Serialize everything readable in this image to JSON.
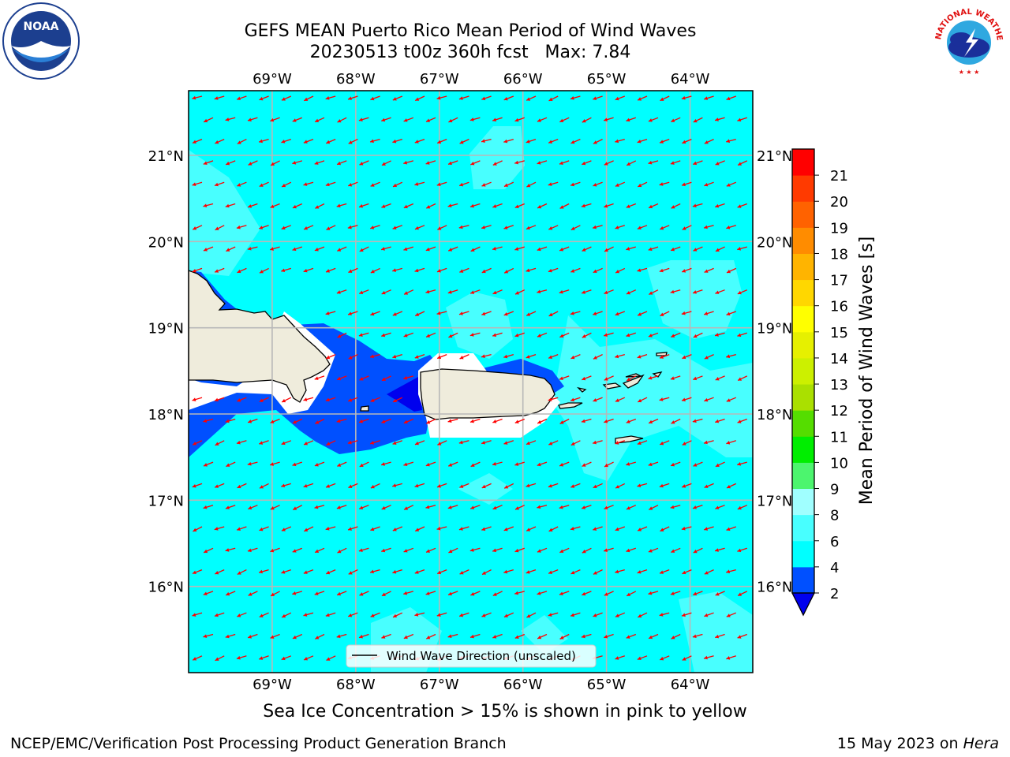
{
  "header": {
    "title_line1": "GEFS MEAN Puerto Rico Mean Period of Wind Waves",
    "title_line2": "20230513 t00z 360h fcst   Max: 7.84"
  },
  "logos": {
    "left": {
      "icon": "noaa-logo-icon",
      "text": "NOAA"
    },
    "right": {
      "icon": "nws-logo-icon",
      "text": "NATIONAL WEATHER SERVICE"
    }
  },
  "map": {
    "lon_labels": [
      "69°W",
      "68°W",
      "67°W",
      "66°W",
      "65°W",
      "64°W"
    ],
    "lat_labels": [
      "21°N",
      "20°N",
      "19°N",
      "18°N",
      "17°N",
      "16°N"
    ],
    "lon_values": [
      -69,
      -68,
      -67,
      -66,
      -65,
      -64
    ],
    "lat_values": [
      21,
      20,
      19,
      18,
      17,
      16
    ],
    "extent": {
      "lon_min": -70.0,
      "lon_max": -63.25,
      "lat_min": 15.0,
      "lat_max": 21.75
    },
    "ocean_color": "#00ffff",
    "land_color": "#efecdc",
    "arrow_color": "#ff0000",
    "grid_color": "#b8b8b8",
    "legend_label": "Wind Wave Direction (unscaled)"
  },
  "colorbar": {
    "label": "Mean Period of Wind Waves [s]",
    "ticks": [
      "2",
      "4",
      "6",
      "8",
      "9",
      "10",
      "11",
      "12",
      "13",
      "14",
      "15",
      "16",
      "17",
      "18",
      "19",
      "20",
      "21"
    ],
    "colors": [
      "#0050ff",
      "#00ffff",
      "#48ffff",
      "#a0ffff",
      "#4cf56e",
      "#00ee00",
      "#55dd00",
      "#aae000",
      "#ccf000",
      "#e6f000",
      "#ffff00",
      "#ffd700",
      "#ffb400",
      "#ff8c00",
      "#ff6200",
      "#ff3a00",
      "#ff0000"
    ],
    "under_color": "#0000ee"
  },
  "caption": "Sea Ice Concentration > 15% is shown in pink to yellow",
  "footer": {
    "left": "NCEP/EMC/Verification Post Processing Product Generation Branch",
    "right_prefix": "15 May 2023 on ",
    "right_machine": "Hera"
  }
}
